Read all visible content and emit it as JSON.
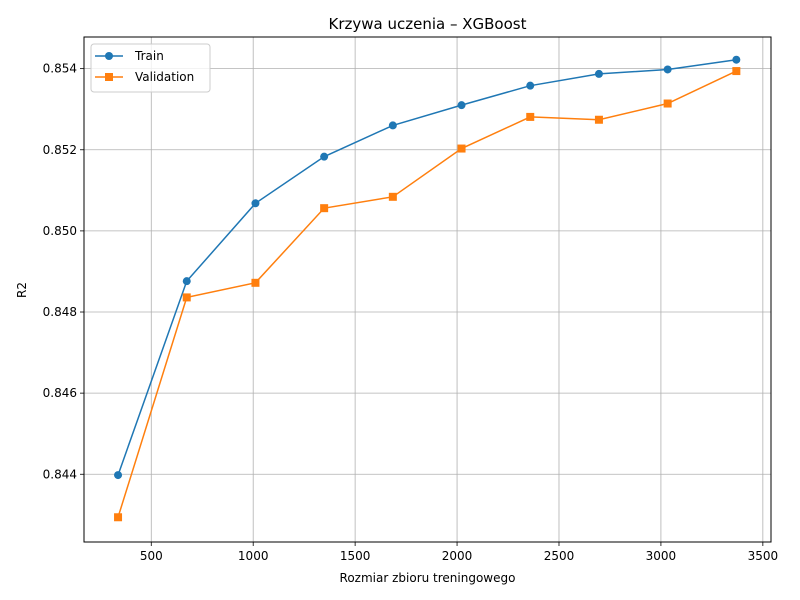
{
  "chart_data": {
    "type": "line",
    "title": "Krzywa uczenia – XGBoost",
    "xlabel": "Rozmiar zbioru treningowego",
    "ylabel": "R2",
    "xlim": [
      170,
      3540
    ],
    "ylim": [
      0.84233,
      0.85478
    ],
    "xticks": [
      500,
      1000,
      1500,
      2000,
      2500,
      3000,
      3500
    ],
    "xtick_labels": [
      "500",
      "1000",
      "1500",
      "2000",
      "2500",
      "3000",
      "3500"
    ],
    "yticks": [
      0.844,
      0.846,
      0.848,
      0.85,
      0.852,
      0.854
    ],
    "ytick_labels": [
      "0.844",
      "0.846",
      "0.848",
      "0.850",
      "0.852",
      "0.854"
    ],
    "grid": true,
    "legend_position": "top-left",
    "x": [
      337,
      674,
      1011,
      1348,
      1685,
      2022,
      2359,
      2696,
      3033,
      3370
    ],
    "series": [
      {
        "name": "Train",
        "color": "#1f77b4",
        "marker": "circle",
        "values": [
          0.84398,
          0.84876,
          0.85068,
          0.85183,
          0.8526,
          0.8531,
          0.85358,
          0.85387,
          0.85398,
          0.85422
        ]
      },
      {
        "name": "Validation",
        "color": "#ff7f0e",
        "marker": "square",
        "values": [
          0.84294,
          0.84836,
          0.84872,
          0.85056,
          0.85084,
          0.85203,
          0.85281,
          0.85274,
          0.85314,
          0.85394
        ]
      }
    ]
  }
}
